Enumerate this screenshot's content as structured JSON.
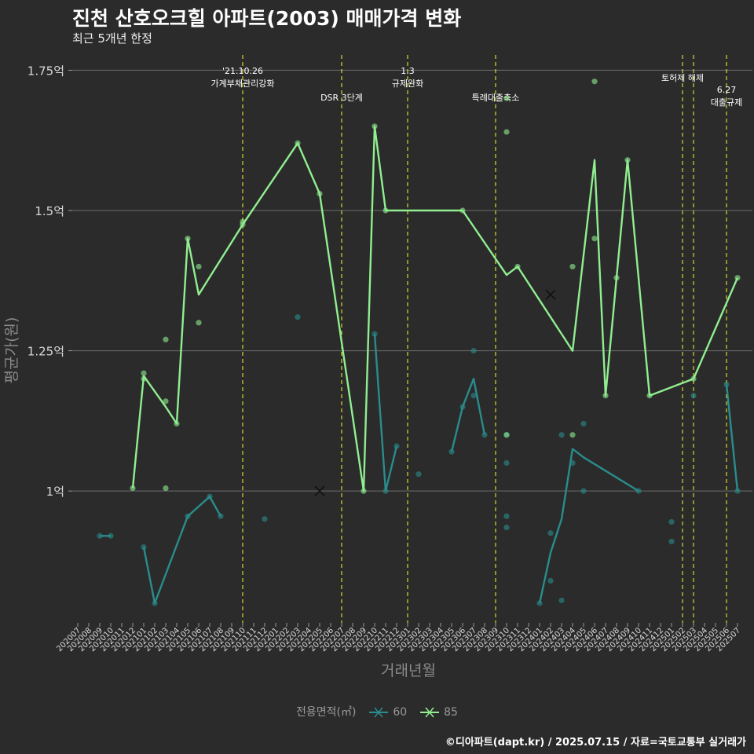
{
  "title": "진천 산호오크힐 아파트(2003) 매매가격 변화",
  "subtitle": "최근 5개년 한정",
  "footer": "©디아파트(dapt.kr) / 2025.07.15 / 자료=국토교통부 실거래가",
  "colors": {
    "background": "#2b2b2b",
    "s60": "#2a8c8c",
    "s85": "#90ee90",
    "event_line": "#e6e62e",
    "grid": "#6e6e6e"
  },
  "legend": {
    "title": "전용면적(㎡)",
    "items": [
      {
        "label": "60",
        "color": "#2a8c8c"
      },
      {
        "label": "85",
        "color": "#90ee90"
      }
    ]
  },
  "chart_data": {
    "type": "line",
    "xlabel": "거래년월",
    "ylabel": "평균가(원)",
    "ylim": [
      0.765,
      1.78
    ],
    "yticks": [
      {
        "value": 1.0,
        "label": "1억"
      },
      {
        "value": 1.25,
        "label": "1.25억"
      },
      {
        "value": 1.5,
        "label": "1.5억"
      },
      {
        "value": 1.75,
        "label": "1.75억"
      }
    ],
    "categories": [
      "202007",
      "202008",
      "202009",
      "202010",
      "202011",
      "202012",
      "202101",
      "202102",
      "202103",
      "202104",
      "202105",
      "202106",
      "202107",
      "202108",
      "202109",
      "202110",
      "202111",
      "202112",
      "202201",
      "202202",
      "202203",
      "202204",
      "202205",
      "202206",
      "202207",
      "202208",
      "202209",
      "202210",
      "202211",
      "202212",
      "202301",
      "202302",
      "202303",
      "202304",
      "202305",
      "202306",
      "202307",
      "202308",
      "202309",
      "202310",
      "202311",
      "202312",
      "202401",
      "202402",
      "202403",
      "202404",
      "202405",
      "202406",
      "202407",
      "202408",
      "202409",
      "202410",
      "202411",
      "202412",
      "202501",
      "202502",
      "202503",
      "202504",
      "202505",
      "202506",
      "202507"
    ],
    "series": [
      {
        "name": "60",
        "color": "#2a8c8c",
        "line_segments": [
          [
            [
              "202009",
              0.92
            ],
            [
              "202010",
              0.92
            ]
          ],
          [
            [
              "202101",
              0.9
            ],
            [
              "202102",
              0.8
            ],
            [
              "202105",
              0.955
            ],
            [
              "202107",
              0.99
            ],
            [
              "202108",
              0.955
            ]
          ],
          [
            [
              "202210",
              1.28
            ],
            [
              "202211",
              1.0
            ],
            [
              "202212",
              1.08
            ]
          ],
          [
            [
              "202305",
              1.07
            ],
            [
              "202306",
              1.15
            ],
            [
              "202307",
              1.2
            ],
            [
              "202308",
              1.1
            ]
          ],
          [
            [
              "202401",
              0.8
            ],
            [
              "202402",
              0.89
            ],
            [
              "202403",
              0.95
            ],
            [
              "202404",
              1.075
            ],
            [
              "202405",
              1.06
            ],
            [
              "202410",
              1.0
            ]
          ],
          [
            [
              "202506",
              1.19
            ],
            [
              "202507",
              1.0
            ]
          ]
        ],
        "points": [
          [
            "202009",
            0.92
          ],
          [
            "202010",
            0.92
          ],
          [
            "202101",
            0.9
          ],
          [
            "202102",
            0.8
          ],
          [
            "202105",
            0.955
          ],
          [
            "202107",
            0.99
          ],
          [
            "202108",
            0.955
          ],
          [
            "202112",
            0.95
          ],
          [
            "202203",
            1.31
          ],
          [
            "202210",
            1.28
          ],
          [
            "202211",
            1.0
          ],
          [
            "202212",
            1.08
          ],
          [
            "202302",
            1.03
          ],
          [
            "202305",
            1.07
          ],
          [
            "202306",
            1.15
          ],
          [
            "202307",
            1.25
          ],
          [
            "202307",
            1.17
          ],
          [
            "202308",
            1.1
          ],
          [
            "202310",
            1.1
          ],
          [
            "202310",
            1.05
          ],
          [
            "202310",
            0.955
          ],
          [
            "202310",
            0.935
          ],
          [
            "202401",
            0.8
          ],
          [
            "202402",
            0.925
          ],
          [
            "202402",
            0.84
          ],
          [
            "202403",
            1.1
          ],
          [
            "202403",
            0.805
          ],
          [
            "202404",
            1.05
          ],
          [
            "202405",
            1.12
          ],
          [
            "202405",
            1.0
          ],
          [
            "202410",
            1.0
          ],
          [
            "202501",
            0.945
          ],
          [
            "202501",
            0.91
          ],
          [
            "202503",
            1.17
          ],
          [
            "202506",
            1.19
          ],
          [
            "202507",
            1.0
          ]
        ],
        "x_markers": [
          [
            "202205",
            1.0
          ]
        ]
      },
      {
        "name": "85",
        "color": "#90ee90",
        "line_segments": [
          [
            [
              "202012",
              1.005
            ],
            [
              "202101",
              1.205
            ],
            [
              "202103",
              1.15
            ],
            [
              "202104",
              1.12
            ],
            [
              "202105",
              1.45
            ],
            [
              "202106",
              1.35
            ],
            [
              "202110",
              1.475
            ],
            [
              "202203",
              1.62
            ],
            [
              "202205",
              1.53
            ],
            [
              "202209",
              1.0
            ],
            [
              "202210",
              1.65
            ],
            [
              "202211",
              1.5
            ],
            [
              "202306",
              1.5
            ],
            [
              "202310",
              1.385
            ],
            [
              "202311",
              1.4
            ],
            [
              "202404",
              1.25
            ],
            [
              "202406",
              1.59
            ],
            [
              "202407",
              1.17
            ],
            [
              "202409",
              1.59
            ],
            [
              "202411",
              1.17
            ],
            [
              "202503",
              1.2
            ],
            [
              "202507",
              1.38
            ]
          ]
        ],
        "points": [
          [
            "202012",
            1.005
          ],
          [
            "202101",
            1.21
          ],
          [
            "202101",
            1.2
          ],
          [
            "202103",
            1.16
          ],
          [
            "202103",
            1.27
          ],
          [
            "202103",
            1.005
          ],
          [
            "202104",
            1.12
          ],
          [
            "202105",
            1.45
          ],
          [
            "202106",
            1.4
          ],
          [
            "202106",
            1.3
          ],
          [
            "202110",
            1.475
          ],
          [
            "202110",
            1.48
          ],
          [
            "202203",
            1.62
          ],
          [
            "202205",
            1.53
          ],
          [
            "202209",
            1.0
          ],
          [
            "202210",
            1.65
          ],
          [
            "202211",
            1.5
          ],
          [
            "202306",
            1.5
          ],
          [
            "202310",
            1.7
          ],
          [
            "202310",
            1.64
          ],
          [
            "202310",
            1.1
          ],
          [
            "202311",
            1.4
          ],
          [
            "202404",
            1.4
          ],
          [
            "202404",
            1.1
          ],
          [
            "202406",
            1.73
          ],
          [
            "202406",
            1.45
          ],
          [
            "202407",
            1.17
          ],
          [
            "202408",
            1.38
          ],
          [
            "202409",
            1.59
          ],
          [
            "202411",
            1.17
          ],
          [
            "202503",
            1.2
          ],
          [
            "202507",
            1.38
          ]
        ],
        "x_markers": [
          [
            "202402",
            1.35
          ]
        ]
      }
    ],
    "events": [
      {
        "x": "202110",
        "lines": [
          "'21.10.26",
          "가계부채관리강화"
        ],
        "row": "top"
      },
      {
        "x": "202207",
        "lines": [
          "DSR 3단계"
        ],
        "row": "low"
      },
      {
        "x": "202301",
        "lines": [
          "1.3",
          "규제완화"
        ],
        "row": "top"
      },
      {
        "x": "202309",
        "lines": [
          "특례대출축소"
        ],
        "row": "low"
      },
      {
        "x": "202502",
        "lines": [
          "토허제 해제"
        ],
        "row": "mid"
      },
      {
        "x": "202503",
        "lines": [],
        "row": "mid"
      },
      {
        "x": "202506",
        "lines": [
          "6.27",
          "대출규제"
        ],
        "row": "right"
      }
    ]
  }
}
